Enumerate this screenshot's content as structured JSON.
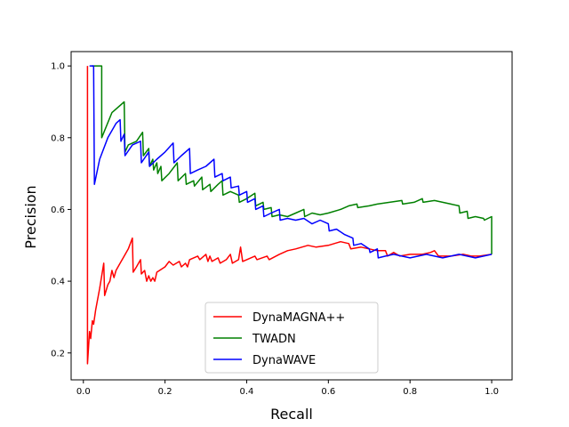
{
  "chart_data": {
    "type": "line",
    "xlabel": "Recall",
    "ylabel": "Precision",
    "xlim": [
      -0.03,
      1.05
    ],
    "ylim": [
      0.125,
      1.04
    ],
    "xticks": [
      "0.0",
      "0.2",
      "0.4",
      "0.6",
      "0.8",
      "1.0"
    ],
    "yticks": [
      "0.2",
      "0.4",
      "0.6",
      "0.8",
      "1.0"
    ],
    "grid": false,
    "legend_position": "lower-center",
    "series": [
      {
        "name": "DynaMAGNA++",
        "color": "#ff0000",
        "points": [
          [
            0.01,
            1.0
          ],
          [
            0.01,
            0.17
          ],
          [
            0.015,
            0.26
          ],
          [
            0.018,
            0.24
          ],
          [
            0.022,
            0.29
          ],
          [
            0.025,
            0.28
          ],
          [
            0.03,
            0.32
          ],
          [
            0.04,
            0.38
          ],
          [
            0.05,
            0.45
          ],
          [
            0.052,
            0.36
          ],
          [
            0.06,
            0.39
          ],
          [
            0.065,
            0.4
          ],
          [
            0.07,
            0.43
          ],
          [
            0.075,
            0.41
          ],
          [
            0.08,
            0.43
          ],
          [
            0.09,
            0.45
          ],
          [
            0.1,
            0.47
          ],
          [
            0.11,
            0.49
          ],
          [
            0.12,
            0.52
          ],
          [
            0.122,
            0.425
          ],
          [
            0.13,
            0.44
          ],
          [
            0.14,
            0.46
          ],
          [
            0.142,
            0.42
          ],
          [
            0.15,
            0.43
          ],
          [
            0.155,
            0.4
          ],
          [
            0.16,
            0.415
          ],
          [
            0.165,
            0.4
          ],
          [
            0.17,
            0.41
          ],
          [
            0.175,
            0.4
          ],
          [
            0.18,
            0.425
          ],
          [
            0.2,
            0.44
          ],
          [
            0.21,
            0.455
          ],
          [
            0.22,
            0.445
          ],
          [
            0.235,
            0.455
          ],
          [
            0.24,
            0.44
          ],
          [
            0.25,
            0.45
          ],
          [
            0.255,
            0.44
          ],
          [
            0.26,
            0.46
          ],
          [
            0.28,
            0.47
          ],
          [
            0.285,
            0.46
          ],
          [
            0.3,
            0.475
          ],
          [
            0.305,
            0.455
          ],
          [
            0.31,
            0.47
          ],
          [
            0.315,
            0.455
          ],
          [
            0.33,
            0.465
          ],
          [
            0.335,
            0.45
          ],
          [
            0.35,
            0.46
          ],
          [
            0.36,
            0.475
          ],
          [
            0.365,
            0.45
          ],
          [
            0.38,
            0.46
          ],
          [
            0.385,
            0.495
          ],
          [
            0.39,
            0.455
          ],
          [
            0.4,
            0.46
          ],
          [
            0.42,
            0.47
          ],
          [
            0.425,
            0.46
          ],
          [
            0.45,
            0.47
          ],
          [
            0.455,
            0.46
          ],
          [
            0.48,
            0.475
          ],
          [
            0.5,
            0.485
          ],
          [
            0.52,
            0.49
          ],
          [
            0.55,
            0.5
          ],
          [
            0.57,
            0.495
          ],
          [
            0.6,
            0.5
          ],
          [
            0.63,
            0.51
          ],
          [
            0.65,
            0.505
          ],
          [
            0.655,
            0.49
          ],
          [
            0.68,
            0.495
          ],
          [
            0.7,
            0.49
          ],
          [
            0.72,
            0.485
          ],
          [
            0.74,
            0.485
          ],
          [
            0.745,
            0.47
          ],
          [
            0.76,
            0.48
          ],
          [
            0.775,
            0.47
          ],
          [
            0.8,
            0.475
          ],
          [
            0.83,
            0.475
          ],
          [
            0.85,
            0.48
          ],
          [
            0.86,
            0.485
          ],
          [
            0.87,
            0.47
          ],
          [
            0.9,
            0.47
          ],
          [
            0.93,
            0.475
          ],
          [
            0.95,
            0.47
          ],
          [
            0.97,
            0.47
          ],
          [
            1.0,
            0.475
          ]
        ]
      },
      {
        "name": "TWADN",
        "color": "#008000",
        "points": [
          [
            0.02,
            1.0
          ],
          [
            0.045,
            1.0
          ],
          [
            0.045,
            0.8
          ],
          [
            0.07,
            0.87
          ],
          [
            0.1,
            0.9
          ],
          [
            0.102,
            0.76
          ],
          [
            0.11,
            0.78
          ],
          [
            0.13,
            0.79
          ],
          [
            0.145,
            0.815
          ],
          [
            0.147,
            0.75
          ],
          [
            0.16,
            0.77
          ],
          [
            0.162,
            0.72
          ],
          [
            0.17,
            0.74
          ],
          [
            0.172,
            0.71
          ],
          [
            0.18,
            0.73
          ],
          [
            0.182,
            0.7
          ],
          [
            0.19,
            0.72
          ],
          [
            0.192,
            0.68
          ],
          [
            0.21,
            0.7
          ],
          [
            0.23,
            0.73
          ],
          [
            0.232,
            0.68
          ],
          [
            0.25,
            0.7
          ],
          [
            0.252,
            0.67
          ],
          [
            0.27,
            0.68
          ],
          [
            0.272,
            0.665
          ],
          [
            0.29,
            0.69
          ],
          [
            0.292,
            0.655
          ],
          [
            0.31,
            0.67
          ],
          [
            0.312,
            0.65
          ],
          [
            0.33,
            0.67
          ],
          [
            0.34,
            0.68
          ],
          [
            0.342,
            0.64
          ],
          [
            0.36,
            0.65
          ],
          [
            0.38,
            0.64
          ],
          [
            0.382,
            0.62
          ],
          [
            0.4,
            0.63
          ],
          [
            0.42,
            0.645
          ],
          [
            0.422,
            0.61
          ],
          [
            0.44,
            0.62
          ],
          [
            0.442,
            0.6
          ],
          [
            0.46,
            0.605
          ],
          [
            0.462,
            0.58
          ],
          [
            0.48,
            0.585
          ],
          [
            0.5,
            0.58
          ],
          [
            0.52,
            0.59
          ],
          [
            0.54,
            0.6
          ],
          [
            0.542,
            0.58
          ],
          [
            0.56,
            0.59
          ],
          [
            0.58,
            0.585
          ],
          [
            0.6,
            0.59
          ],
          [
            0.63,
            0.6
          ],
          [
            0.65,
            0.61
          ],
          [
            0.67,
            0.615
          ],
          [
            0.672,
            0.605
          ],
          [
            0.7,
            0.61
          ],
          [
            0.72,
            0.615
          ],
          [
            0.75,
            0.62
          ],
          [
            0.78,
            0.625
          ],
          [
            0.782,
            0.615
          ],
          [
            0.81,
            0.62
          ],
          [
            0.83,
            0.63
          ],
          [
            0.832,
            0.62
          ],
          [
            0.86,
            0.625
          ],
          [
            0.88,
            0.62
          ],
          [
            0.9,
            0.615
          ],
          [
            0.92,
            0.61
          ],
          [
            0.922,
            0.59
          ],
          [
            0.94,
            0.595
          ],
          [
            0.942,
            0.575
          ],
          [
            0.96,
            0.58
          ],
          [
            0.98,
            0.575
          ],
          [
            0.982,
            0.57
          ],
          [
            1.0,
            0.58
          ],
          [
            1.0,
            0.475
          ]
        ]
      },
      {
        "name": "DynaWAVE",
        "color": "#0000ff",
        "points": [
          [
            0.015,
            1.0
          ],
          [
            0.025,
            1.0
          ],
          [
            0.027,
            0.67
          ],
          [
            0.04,
            0.74
          ],
          [
            0.06,
            0.8
          ],
          [
            0.08,
            0.84
          ],
          [
            0.09,
            0.85
          ],
          [
            0.092,
            0.79
          ],
          [
            0.1,
            0.81
          ],
          [
            0.102,
            0.75
          ],
          [
            0.12,
            0.78
          ],
          [
            0.14,
            0.79
          ],
          [
            0.142,
            0.73
          ],
          [
            0.16,
            0.76
          ],
          [
            0.162,
            0.72
          ],
          [
            0.18,
            0.74
          ],
          [
            0.2,
            0.76
          ],
          [
            0.22,
            0.785
          ],
          [
            0.222,
            0.73
          ],
          [
            0.24,
            0.75
          ],
          [
            0.26,
            0.77
          ],
          [
            0.262,
            0.7
          ],
          [
            0.28,
            0.71
          ],
          [
            0.3,
            0.72
          ],
          [
            0.32,
            0.74
          ],
          [
            0.322,
            0.69
          ],
          [
            0.34,
            0.7
          ],
          [
            0.342,
            0.68
          ],
          [
            0.36,
            0.69
          ],
          [
            0.362,
            0.66
          ],
          [
            0.38,
            0.665
          ],
          [
            0.382,
            0.64
          ],
          [
            0.4,
            0.65
          ],
          [
            0.402,
            0.62
          ],
          [
            0.42,
            0.63
          ],
          [
            0.422,
            0.6
          ],
          [
            0.44,
            0.61
          ],
          [
            0.442,
            0.58
          ],
          [
            0.46,
            0.59
          ],
          [
            0.48,
            0.6
          ],
          [
            0.482,
            0.57
          ],
          [
            0.5,
            0.575
          ],
          [
            0.52,
            0.57
          ],
          [
            0.54,
            0.575
          ],
          [
            0.56,
            0.56
          ],
          [
            0.58,
            0.57
          ],
          [
            0.6,
            0.56
          ],
          [
            0.602,
            0.54
          ],
          [
            0.62,
            0.545
          ],
          [
            0.64,
            0.53
          ],
          [
            0.66,
            0.52
          ],
          [
            0.662,
            0.5
          ],
          [
            0.68,
            0.505
          ],
          [
            0.7,
            0.49
          ],
          [
            0.702,
            0.48
          ],
          [
            0.72,
            0.49
          ],
          [
            0.722,
            0.465
          ],
          [
            0.74,
            0.47
          ],
          [
            0.76,
            0.475
          ],
          [
            0.78,
            0.47
          ],
          [
            0.8,
            0.465
          ],
          [
            0.82,
            0.47
          ],
          [
            0.84,
            0.475
          ],
          [
            0.86,
            0.47
          ],
          [
            0.88,
            0.465
          ],
          [
            0.9,
            0.47
          ],
          [
            0.92,
            0.475
          ],
          [
            0.94,
            0.47
          ],
          [
            0.96,
            0.465
          ],
          [
            0.98,
            0.47
          ],
          [
            1.0,
            0.475
          ]
        ]
      }
    ]
  }
}
